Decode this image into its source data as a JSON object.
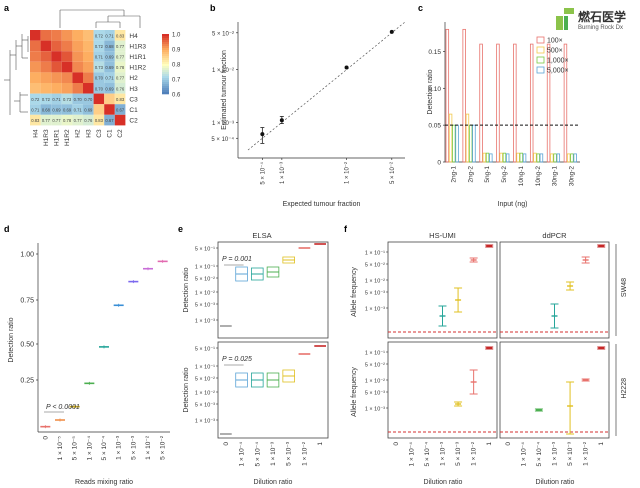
{
  "logo": {
    "name": "燃石医学",
    "sub": "Burning Rock Dx"
  },
  "chart_data": [
    {
      "panel": "a",
      "type": "heatmap",
      "labels": [
        "H4",
        "H1R3",
        "H1R1",
        "H1R2",
        "H2",
        "H3",
        "C3",
        "C1",
        "C2"
      ],
      "col_labels": [
        "H4",
        "H1R3",
        "H1R1",
        "H1R2",
        "H2",
        "H3",
        "C3",
        "C1",
        "C2"
      ],
      "matrix": [
        [
          1.0,
          0.95,
          0.94,
          0.92,
          0.9,
          0.88,
          0.72,
          0.71,
          0.83
        ],
        [
          0.95,
          1.0,
          0.96,
          0.94,
          0.91,
          0.89,
          0.72,
          0.68,
          0.77
        ],
        [
          0.94,
          0.96,
          1.0,
          0.97,
          0.92,
          0.9,
          0.71,
          0.69,
          0.77
        ],
        [
          0.92,
          0.94,
          0.97,
          1.0,
          0.93,
          0.91,
          0.73,
          0.69,
          0.78
        ],
        [
          0.9,
          0.91,
          0.92,
          0.93,
          1.0,
          0.94,
          0.7,
          0.71,
          0.77
        ],
        [
          0.88,
          0.89,
          0.9,
          0.91,
          0.94,
          1.0,
          0.7,
          0.69,
          0.76
        ],
        [
          0.72,
          0.72,
          0.71,
          0.73,
          0.7,
          0.7,
          1.0,
          0.86,
          0.83
        ],
        [
          0.71,
          0.68,
          0.69,
          0.69,
          0.71,
          0.69,
          0.86,
          1.0,
          0.67
        ],
        [
          0.83,
          0.77,
          0.77,
          0.78,
          0.77,
          0.76,
          0.83,
          0.67,
          1.0
        ]
      ],
      "cell_text": [
        [
          "",
          "",
          "",
          "",
          "",
          "",
          "0.72",
          "0.71",
          "0.83"
        ],
        [
          "",
          "",
          "",
          "",
          "",
          "",
          "0.72",
          "0.68",
          "0.77"
        ],
        [
          "",
          "",
          "",
          "",
          "",
          "",
          "0.71",
          "0.69",
          "0.77"
        ],
        [
          "",
          "",
          "",
          "",
          "",
          "",
          "0.73",
          "0.69",
          "0.78"
        ],
        [
          "",
          "",
          "",
          "",
          "",
          "",
          "0.70",
          "0.71",
          "0.77"
        ],
        [
          "",
          "",
          "",
          "",
          "",
          "",
          "0.70",
          "0.69",
          "0.76"
        ],
        [
          "0.72",
          "0.72",
          "0.71",
          "0.73",
          "0.70",
          "0.70",
          "",
          "",
          "0.83"
        ],
        [
          "0.71",
          "0.68",
          "0.69",
          "0.69",
          "0.71",
          "0.69",
          "",
          "",
          "0.67"
        ],
        [
          "0.83",
          "0.77",
          "0.77",
          "0.78",
          "0.77",
          "0.76",
          "0.83",
          "0.67",
          ""
        ]
      ],
      "colorbar": {
        "ticks": [
          "1.0",
          "0.9",
          "0.8",
          "0.7",
          "0.6"
        ],
        "range": [
          0.6,
          1.0
        ]
      }
    },
    {
      "panel": "b",
      "type": "scatter",
      "xlabel": "Expected tumour fraction",
      "ylabel": "Estimated tumour fraction",
      "x_ticks": [
        "5 × 10⁻⁴",
        "1 × 10⁻³",
        "1 × 10⁻²",
        "5 × 10⁻²"
      ],
      "y_ticks": [
        "5 × 10⁻²",
        "1 × 10⁻²",
        "1 × 10⁻³",
        "5 × 10⁻⁴"
      ],
      "points": [
        {
          "x": 0.0005,
          "y": 0.0006,
          "lo": 0.0004,
          "hi": 0.0008
        },
        {
          "x": 0.001,
          "y": 0.0011,
          "lo": 0.00095,
          "hi": 0.0013
        },
        {
          "x": 0.01,
          "y": 0.011
        },
        {
          "x": 0.05,
          "y": 0.052
        }
      ]
    },
    {
      "panel": "c",
      "type": "bar",
      "xlabel": "Input (ng)",
      "ylabel": "Detection ratio",
      "categories": [
        "2ng-1",
        "2ng-2",
        "5ng-1",
        "5ng-2",
        "10ng-1",
        "10ng-2",
        "30ng-1",
        "30ng-2"
      ],
      "y_ticks": [
        "0.15",
        "0.10",
        "0.05",
        "0"
      ],
      "threshold": 0.05,
      "series": [
        {
          "name": "100×",
          "color": "#e8726c",
          "values": [
            0.18,
            0.18,
            0.16,
            0.16,
            0.16,
            0.16,
            0.16,
            0.16
          ]
        },
        {
          "name": "500×",
          "color": "#f2c94c",
          "values": [
            0.065,
            0.065,
            0.012,
            0.012,
            0.012,
            0.012,
            0.011,
            0.011
          ]
        },
        {
          "name": "1,000×",
          "color": "#7ac943",
          "values": [
            0.05,
            0.05,
            0.012,
            0.012,
            0.012,
            0.011,
            0.011,
            0.011
          ]
        },
        {
          "name": "5,000×",
          "color": "#5ba3d6",
          "values": [
            0.05,
            0.05,
            0.011,
            0.011,
            0.011,
            0.011,
            0.011,
            0.011
          ]
        }
      ]
    },
    {
      "panel": "d",
      "type": "scatter",
      "xlabel": "Reads mixing ratio",
      "ylabel": "Detection ratio",
      "categories": [
        "0",
        "1 × 10⁻⁵",
        "5 × 10⁻⁵",
        "1 × 10⁻⁴",
        "5 × 10⁻⁴",
        "1 × 10⁻³",
        "5 × 10⁻³",
        "1 × 10⁻²",
        "5 × 10⁻²"
      ],
      "values": [
        0.11,
        0.13,
        0.17,
        0.24,
        0.48,
        0.72,
        0.85,
        0.92,
        0.96
      ],
      "y_ticks": [
        "1.00",
        "0.75",
        "0.50",
        "0.25"
      ],
      "annotation": "P < 0.0001"
    },
    {
      "panel": "e",
      "type": "box",
      "title": "ELSA",
      "xlabel": "Dilution ratio",
      "ylabel": "Detection ratio",
      "categories": [
        "0",
        "1 × 10⁻⁴",
        "5 × 10⁻⁴",
        "1 × 10⁻³",
        "5 × 10⁻³",
        "1 × 10⁻²",
        "1"
      ],
      "top_p": "P = 0.001",
      "bottom_p": "P = 0.025",
      "y_ticks": [
        "5 × 10⁻¹",
        "1 × 10⁻¹",
        "5 × 10⁻²",
        "1 × 10⁻²",
        "5 × 10⁻³",
        "1 × 10⁻³"
      ]
    },
    {
      "panel": "f",
      "type": "errorbar",
      "titles": [
        "HS-UMI",
        "ddPCR"
      ],
      "rows": [
        "SW48",
        "H2228"
      ],
      "xlabel": "Dilution ratio",
      "ylabel": "Allele frequency",
      "categories": [
        "0",
        "1 × 10⁻⁴",
        "5 × 10⁻⁴",
        "1 × 10⁻³",
        "5 × 10⁻³",
        "1 × 10⁻²",
        "1"
      ],
      "y_ticks": [
        "1 × 10⁻¹",
        "5 × 10⁻²",
        "1 × 10⁻²",
        "5 × 10⁻³",
        "1 × 10⁻³"
      ]
    }
  ]
}
